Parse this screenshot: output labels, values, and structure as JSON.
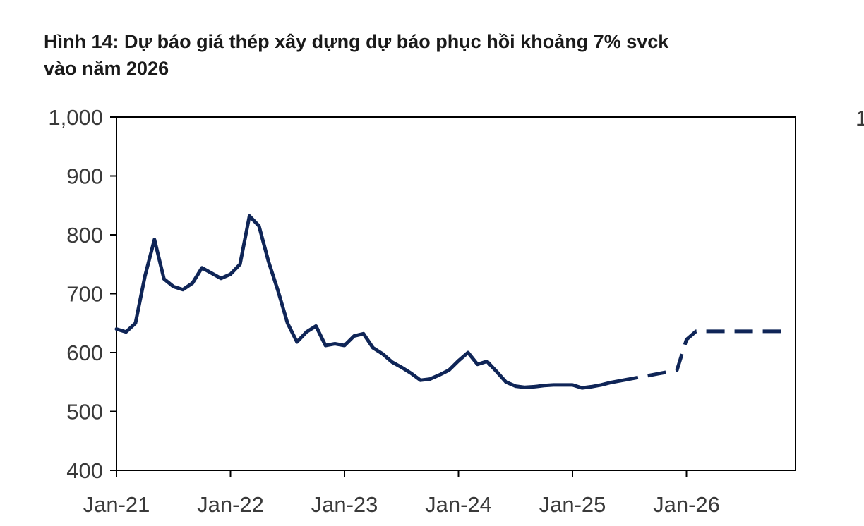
{
  "title": {
    "line1": "Hình 14: Dự báo giá thép xây dựng dự báo phục hồi khoảng 7% svck",
    "line2": "vào năm 2026"
  },
  "right_panel_cut_label": "1",
  "chart_data": {
    "type": "line",
    "title": "Hình 14: Dự báo giá thép xây dựng dự báo phục hồi khoảng 7% svck vào năm 2026",
    "xlabel": "",
    "ylabel": "",
    "ylim": [
      400,
      1000
    ],
    "yticks": [
      400,
      500,
      600,
      700,
      800,
      900,
      1000
    ],
    "ytick_labels": [
      "400",
      "500",
      "600",
      "700",
      "800",
      "900",
      "1,000"
    ],
    "xlim": [
      "2021-01",
      "2026-12"
    ],
    "xtick_labels": [
      "Jan-21",
      "Jan-22",
      "Jan-23",
      "Jan-24",
      "Jan-25",
      "Jan-26"
    ],
    "grid": false,
    "line_color": "#0f2557",
    "series": [
      {
        "style": "solid",
        "x": [
          "2021-01",
          "2021-02",
          "2021-03",
          "2021-04",
          "2021-05",
          "2021-06",
          "2021-07",
          "2021-08",
          "2021-09",
          "2021-10",
          "2021-11",
          "2021-12",
          "2022-01",
          "2022-02",
          "2022-03",
          "2022-04",
          "2022-05",
          "2022-06",
          "2022-07",
          "2022-08",
          "2022-09",
          "2022-10",
          "2022-11",
          "2022-12",
          "2023-01",
          "2023-02",
          "2023-03",
          "2023-04",
          "2023-05",
          "2023-06",
          "2023-07",
          "2023-08",
          "2023-09",
          "2023-10",
          "2023-11",
          "2023-12",
          "2024-01",
          "2024-02",
          "2024-03",
          "2024-04",
          "2024-05",
          "2024-06",
          "2024-07",
          "2024-08",
          "2024-09",
          "2024-10",
          "2024-11",
          "2024-12",
          "2025-01",
          "2025-02",
          "2025-03",
          "2025-04",
          "2025-05",
          "2025-06"
        ],
        "values": [
          640,
          635,
          650,
          730,
          792,
          725,
          712,
          707,
          718,
          744,
          735,
          726,
          733,
          750,
          832,
          815,
          755,
          705,
          650,
          618,
          635,
          645,
          612,
          615,
          612,
          628,
          632,
          608,
          598,
          584,
          575,
          565,
          553,
          555,
          562,
          570,
          586,
          600,
          580,
          585,
          568,
          550,
          543,
          541,
          542,
          544,
          545,
          545,
          545,
          540,
          542,
          545,
          549,
          552
        ]
      },
      {
        "style": "dashed",
        "x": [
          "2025-06",
          "2025-08",
          "2025-10",
          "2025-12",
          "2026-01",
          "2026-02",
          "2026-04",
          "2026-06",
          "2026-08",
          "2026-10",
          "2026-12"
        ],
        "values": [
          552,
          558,
          564,
          570,
          622,
          636,
          636,
          636,
          636,
          636,
          636
        ]
      }
    ]
  }
}
